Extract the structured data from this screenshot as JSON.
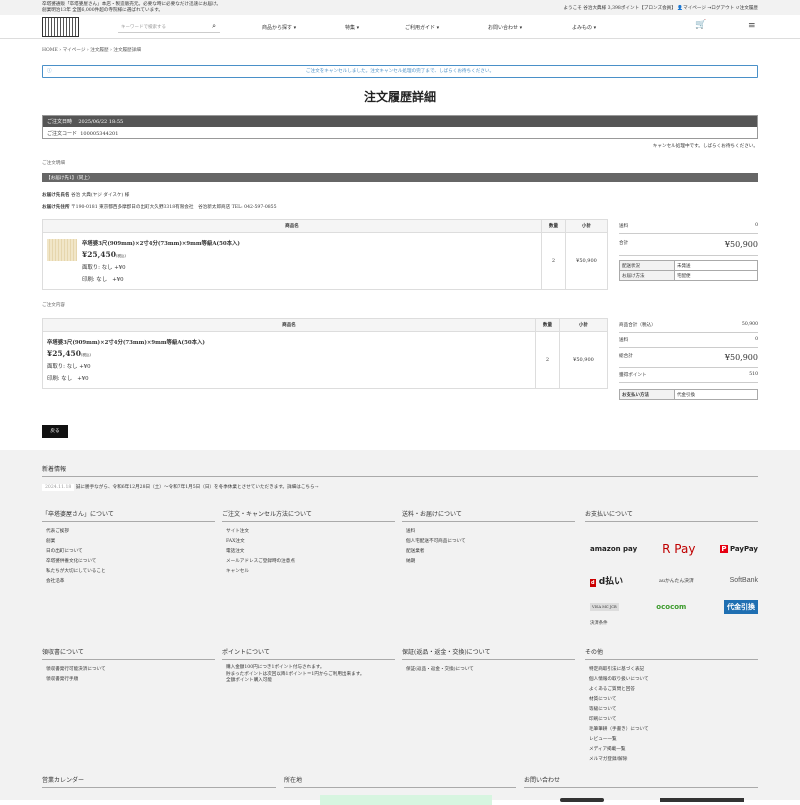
{
  "topbar": {
    "message_line1": "卒塔婆通販「卒塔婆屋さん」本店・製造販売元。必要な時に必要なだけ迅速にお届け。",
    "message_line2": "創業明治13年 全国6,000件超の寺院様に選ばれています。",
    "welcome": "ようこそ 谷治大典様 3,398ポイント【ブロンズ会員】",
    "mypage": "マイページ",
    "logout": "ログアウト",
    "history": "注文履歴"
  },
  "header": {
    "search_placeholder": "キーワードで検索する",
    "nav": [
      "商品から探す ▾",
      "特集 ▾",
      "ご利用ガイド ▾",
      "お問い合わせ ▾",
      "よみもの ▾"
    ]
  },
  "breadcrumb": "HOME › マイページ › 注文履歴 › 注文履歴詳細",
  "notice": "ご注文をキャンセルしました。注文キャンセル処理の完了まで、しばらくお待ちください。",
  "page_title": "注文履歴詳細",
  "order": {
    "date_label": "ご注文日時",
    "date": "2025/06/22 18:55",
    "code_label": "ご注文コード",
    "code": "100005344201",
    "cancel_status": "キャンセル処理中です。しばらくお待ちください。"
  },
  "shipment": {
    "section": "ご注文明細",
    "bar": "【お届け先1】（同上）",
    "name_label": "お届け先氏名",
    "name": "谷治 大典(ヤジ ダイスケ) 様",
    "addr_label": "お届け先住所",
    "addr": "〒190-0181 東京都西多摩郡日の出町大久野3318有限会社　谷治新太郎商店 TEL: 042-597-0855"
  },
  "table_headers": {
    "name": "商品名",
    "qty": "数量",
    "subtotal": "小計"
  },
  "item": {
    "name": "卒塔婆3尺(909mm)×2寸4分(73mm)×9mm等級A(50本入)",
    "price": "¥25,450",
    "tax": "(税込)",
    "opt1": "面取り: なし",
    "opt1_price": "+¥0",
    "opt2": "印刷: なし",
    "opt2_price": "+¥0",
    "qty": "2",
    "subtotal": "¥50,900"
  },
  "side1": {
    "shipping_label": "送料",
    "shipping": "0",
    "total_label": "合計",
    "total": "¥50,900",
    "status_label": "配送状況",
    "status": "未発送",
    "method_label": "お届け方法",
    "method": "宅配便"
  },
  "contents_section": "ご注文内容",
  "side2": {
    "goods_label": "商品合計（税込）",
    "goods": "50,900",
    "shipping_label": "送料",
    "shipping": "0",
    "total_label": "総合計",
    "total": "¥50,900",
    "points_label": "獲得ポイント",
    "points": "510",
    "pay_label": "お支払い方法",
    "pay": "代金引換"
  },
  "back_button": "戻る",
  "footer": {
    "news_title": "新着情報",
    "news_date": "2024.11.18",
    "news_text": "誠に勝手ながら、令和6年12月28日（土）〜令和7年1月5日（日）を冬季休業とさせていただきます。詳細はこちら→",
    "cols1": [
      {
        "title": "「卒塔婆屋さん」について",
        "links": [
          "代表ご挨拶",
          "創業",
          "日の出町について",
          "卒塔婆供養文化について",
          "私たちが大切にしていること",
          "会社沿革"
        ]
      },
      {
        "title": "ご注文・キャンセル方法について",
        "links": [
          "サイト注文",
          "FAX注文",
          "電話注文",
          "メールアドレスご登録時の注意点",
          "キャンセル"
        ]
      },
      {
        "title": "送料・お届けについて",
        "links": [
          "送料",
          "個人宅配送不可商品について",
          "配送業者",
          "納期"
        ]
      },
      {
        "title": "お支払いについて",
        "links": []
      }
    ],
    "payments": [
      "amazon pay",
      "R Pay",
      "PayPay",
      "d払い",
      "auかんたん決済",
      "SoftBank",
      "VISA MC JCB",
      "ococom",
      "代金引換"
    ],
    "payment_terms": "決済条件",
    "cols2": [
      {
        "title": "領収書について",
        "links": [
          "領収書発行可能決済について",
          "領収書発行手順"
        ]
      },
      {
        "title": "ポイントについて",
        "links": [
          "購入金額100円につき1ポイント付与されます。",
          "貯まったポイントは次回以降1ポイント＝1円からご利用出来ます。",
          "全額ポイント購入可能"
        ]
      },
      {
        "title": "保証(返品・返金・交換)について",
        "links": [
          "保証(返品・返金・交換)について"
        ]
      },
      {
        "title": "その他",
        "links": [
          "特定商取引法に基づく表記",
          "個人情報の取り扱いについて",
          "よくあるご質問と回答",
          "材質について",
          "等級について",
          "印刷について",
          "毛筆筆耕（手書き）について",
          "レビュー一覧",
          "メディア掲載一覧",
          "メルマガ登録/解除"
        ]
      }
    ],
    "cols3": [
      "営業カレンダー",
      "所在地",
      "お問い合わせ"
    ]
  },
  "colors": {
    "notice": "#4a90c8",
    "dark_bar": "#555555",
    "footer_bg": "#f2f2f2"
  }
}
